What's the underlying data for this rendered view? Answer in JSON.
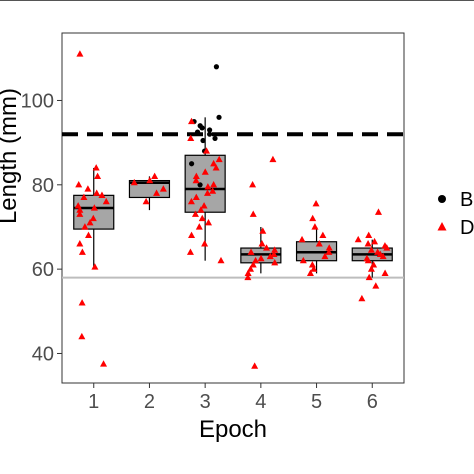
{
  "chart_data": {
    "type": "box",
    "xlabel": "Epoch",
    "ylabel": "Length (mm)",
    "categories": [
      "1",
      "2",
      "3",
      "4",
      "5",
      "6"
    ],
    "ylim": [
      33,
      116
    ],
    "yticks": [
      40,
      60,
      80,
      100
    ],
    "grid": false,
    "legend_position": "right",
    "reference_lines": [
      {
        "y": 92,
        "style": "dashed",
        "color": "#000000"
      },
      {
        "y": 58,
        "style": "solid",
        "color": "#bdbdbd"
      }
    ],
    "boxes": [
      {
        "category": "1",
        "whisker_low": 60,
        "q1": 69.5,
        "median": 74.5,
        "q3": 77.5,
        "whisker_high": 84
      },
      {
        "category": "2",
        "whisker_low": 74,
        "q1": 77,
        "median": 80.5,
        "q3": 81,
        "whisker_high": 82
      },
      {
        "category": "3",
        "whisker_low": 62,
        "q1": 73.5,
        "median": 79,
        "q3": 87,
        "whisker_high": 96
      },
      {
        "category": "4",
        "whisker_low": 59,
        "q1": 61.5,
        "median": 63.5,
        "q3": 65,
        "whisker_high": 70
      },
      {
        "category": "5",
        "whisker_low": 59,
        "q1": 62,
        "median": 64,
        "q3": 66.5,
        "whisker_high": 70
      },
      {
        "category": "6",
        "whisker_low": 58,
        "q1": 62,
        "median": 63.5,
        "q3": 65,
        "whisker_high": 67
      }
    ],
    "series": [
      {
        "name": "B",
        "marker": "circle",
        "color": "#000000",
        "points": [
          [
            3,
            108
          ],
          [
            3,
            96
          ],
          [
            3,
            95
          ],
          [
            3,
            94
          ],
          [
            3,
            93.5
          ],
          [
            3,
            93
          ],
          [
            3,
            92.5
          ],
          [
            3,
            92
          ],
          [
            3,
            91
          ],
          [
            3,
            90.5
          ],
          [
            3,
            88
          ],
          [
            3,
            85
          ],
          [
            3,
            80
          ]
        ]
      },
      {
        "name": "D",
        "marker": "triangle",
        "color": "#ff0000",
        "points": [
          [
            1,
            111
          ],
          [
            1,
            84
          ],
          [
            1,
            82
          ],
          [
            1,
            80
          ],
          [
            1,
            79
          ],
          [
            1,
            78
          ],
          [
            1,
            77.5
          ],
          [
            1,
            77
          ],
          [
            1,
            76
          ],
          [
            1,
            75
          ],
          [
            1,
            74.5
          ],
          [
            1,
            74
          ],
          [
            1,
            73
          ],
          [
            1,
            72
          ],
          [
            1,
            71
          ],
          [
            1,
            70
          ],
          [
            1,
            68
          ],
          [
            1,
            66
          ],
          [
            1,
            64
          ],
          [
            1,
            60.5
          ],
          [
            1,
            52
          ],
          [
            1,
            44
          ],
          [
            1,
            37.5
          ],
          [
            2,
            82
          ],
          [
            2,
            81
          ],
          [
            2,
            80.5
          ],
          [
            2,
            79
          ],
          [
            2,
            78
          ],
          [
            2,
            76
          ],
          [
            3,
            95
          ],
          [
            3,
            91
          ],
          [
            3,
            88
          ],
          [
            3,
            86
          ],
          [
            3,
            85
          ],
          [
            3,
            84
          ],
          [
            3,
            83
          ],
          [
            3,
            82
          ],
          [
            3,
            81
          ],
          [
            3,
            80
          ],
          [
            3,
            79.5
          ],
          [
            3,
            78.5
          ],
          [
            3,
            78
          ],
          [
            3,
            77
          ],
          [
            3,
            76
          ],
          [
            3,
            75
          ],
          [
            3,
            74
          ],
          [
            3,
            73
          ],
          [
            3,
            72
          ],
          [
            3,
            71
          ],
          [
            3,
            70
          ],
          [
            3,
            68
          ],
          [
            3,
            66
          ],
          [
            3,
            64
          ],
          [
            3,
            62
          ],
          [
            4,
            86
          ],
          [
            4,
            80
          ],
          [
            4,
            73
          ],
          [
            4,
            69
          ],
          [
            4,
            66
          ],
          [
            4,
            65
          ],
          [
            4,
            64.5
          ],
          [
            4,
            64
          ],
          [
            4,
            63.5
          ],
          [
            4,
            63
          ],
          [
            4,
            62.5
          ],
          [
            4,
            62
          ],
          [
            4,
            61.5
          ],
          [
            4,
            61
          ],
          [
            4,
            60
          ],
          [
            4,
            59
          ],
          [
            4,
            58
          ],
          [
            4,
            37
          ],
          [
            5,
            75.5
          ],
          [
            5,
            72
          ],
          [
            5,
            70
          ],
          [
            5,
            68
          ],
          [
            5,
            67
          ],
          [
            5,
            66
          ],
          [
            5,
            65
          ],
          [
            5,
            64
          ],
          [
            5,
            63
          ],
          [
            5,
            62
          ],
          [
            5,
            61
          ],
          [
            5,
            60
          ],
          [
            5,
            59
          ],
          [
            6,
            73.5
          ],
          [
            6,
            68
          ],
          [
            6,
            67
          ],
          [
            6,
            66.5
          ],
          [
            6,
            66
          ],
          [
            6,
            65.5
          ],
          [
            6,
            65
          ],
          [
            6,
            64.5
          ],
          [
            6,
            64
          ],
          [
            6,
            63.5
          ],
          [
            6,
            63
          ],
          [
            6,
            62.5
          ],
          [
            6,
            62
          ],
          [
            6,
            61
          ],
          [
            6,
            60
          ],
          [
            6,
            59
          ],
          [
            6,
            58
          ],
          [
            6,
            56
          ],
          [
            6,
            53
          ]
        ]
      }
    ]
  }
}
